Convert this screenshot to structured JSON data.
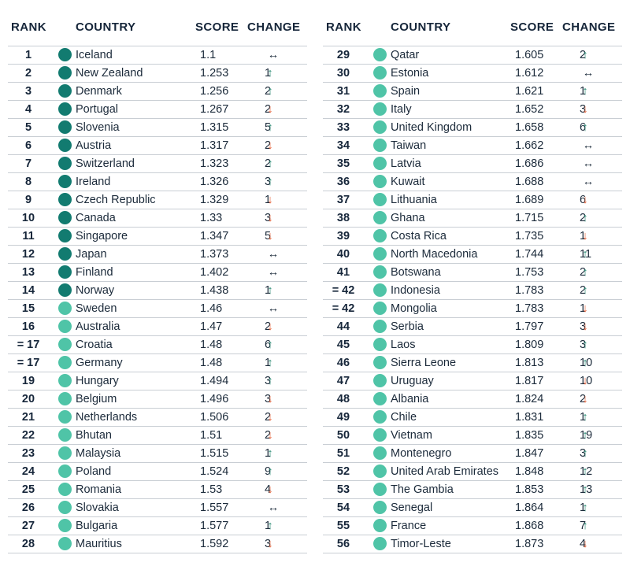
{
  "headers": {
    "rank": "RANK",
    "country": "COUNTRY",
    "score": "SCORE",
    "change": "CHANGE"
  },
  "colors": {
    "dark_teal": "#127b70",
    "light_teal": "#4fc4a7",
    "up": "#2b8c75",
    "down": "#e8673f"
  },
  "left_rows": [
    {
      "rank": "1",
      "country": "Iceland",
      "score": "1.1",
      "dir": "same",
      "change": "",
      "tier": "dark"
    },
    {
      "rank": "2",
      "country": "New Zealand",
      "score": "1.253",
      "dir": "up",
      "change": "1",
      "tier": "dark"
    },
    {
      "rank": "3",
      "country": "Denmark",
      "score": "1.256",
      "dir": "up",
      "change": "2",
      "tier": "dark"
    },
    {
      "rank": "4",
      "country": "Portugal",
      "score": "1.267",
      "dir": "down",
      "change": "2",
      "tier": "dark"
    },
    {
      "rank": "5",
      "country": "Slovenia",
      "score": "1.315",
      "dir": "up",
      "change": "5",
      "tier": "dark"
    },
    {
      "rank": "6",
      "country": "Austria",
      "score": "1.317",
      "dir": "down",
      "change": "2",
      "tier": "dark"
    },
    {
      "rank": "7",
      "country": "Switzerland",
      "score": "1.323",
      "dir": "up",
      "change": "2",
      "tier": "dark"
    },
    {
      "rank": "8",
      "country": "Ireland",
      "score": "1.326",
      "dir": "up",
      "change": "3",
      "tier": "dark"
    },
    {
      "rank": "9",
      "country": "Czech Republic",
      "score": "1.329",
      "dir": "down",
      "change": "1",
      "tier": "dark"
    },
    {
      "rank": "10",
      "country": "Canada",
      "score": "1.33",
      "dir": "down",
      "change": "3",
      "tier": "dark"
    },
    {
      "rank": "11",
      "country": "Singapore",
      "score": "1.347",
      "dir": "down",
      "change": "5",
      "tier": "dark"
    },
    {
      "rank": "12",
      "country": "Japan",
      "score": "1.373",
      "dir": "same",
      "change": "",
      "tier": "dark"
    },
    {
      "rank": "13",
      "country": "Finland",
      "score": "1.402",
      "dir": "same",
      "change": "",
      "tier": "dark"
    },
    {
      "rank": "14",
      "country": "Norway",
      "score": "1.438",
      "dir": "up",
      "change": "1",
      "tier": "dark"
    },
    {
      "rank": "15",
      "country": "Sweden",
      "score": "1.46",
      "dir": "same",
      "change": "",
      "tier": "light"
    },
    {
      "rank": "16",
      "country": "Australia",
      "score": "1.47",
      "dir": "down",
      "change": "2",
      "tier": "light"
    },
    {
      "rank": "= 17",
      "country": "Croatia",
      "score": "1.48",
      "dir": "up",
      "change": "6",
      "tier": "light"
    },
    {
      "rank": "= 17",
      "country": "Germany",
      "score": "1.48",
      "dir": "up",
      "change": "1",
      "tier": "light"
    },
    {
      "rank": "19",
      "country": "Hungary",
      "score": "1.494",
      "dir": "up",
      "change": "3",
      "tier": "light"
    },
    {
      "rank": "20",
      "country": "Belgium",
      "score": "1.496",
      "dir": "down",
      "change": "3",
      "tier": "light"
    },
    {
      "rank": "21",
      "country": "Netherlands",
      "score": "1.506",
      "dir": "down",
      "change": "2",
      "tier": "light"
    },
    {
      "rank": "22",
      "country": "Bhutan",
      "score": "1.51",
      "dir": "down",
      "change": "2",
      "tier": "light"
    },
    {
      "rank": "23",
      "country": "Malaysia",
      "score": "1.515",
      "dir": "up",
      "change": "1",
      "tier": "light"
    },
    {
      "rank": "24",
      "country": "Poland",
      "score": "1.524",
      "dir": "up",
      "change": "9",
      "tier": "light"
    },
    {
      "rank": "25",
      "country": "Romania",
      "score": "1.53",
      "dir": "down",
      "change": "4",
      "tier": "light"
    },
    {
      "rank": "26",
      "country": "Slovakia",
      "score": "1.557",
      "dir": "same",
      "change": "",
      "tier": "light"
    },
    {
      "rank": "27",
      "country": "Bulgaria",
      "score": "1.577",
      "dir": "up",
      "change": "1",
      "tier": "light"
    },
    {
      "rank": "28",
      "country": "Mauritius",
      "score": "1.592",
      "dir": "down",
      "change": "3",
      "tier": "light"
    }
  ],
  "right_rows": [
    {
      "rank": "29",
      "country": "Qatar",
      "score": "1.605",
      "dir": "up",
      "change": "2",
      "tier": "light"
    },
    {
      "rank": "30",
      "country": "Estonia",
      "score": "1.612",
      "dir": "same",
      "change": "",
      "tier": "light"
    },
    {
      "rank": "31",
      "country": "Spain",
      "score": "1.621",
      "dir": "up",
      "change": "1",
      "tier": "light"
    },
    {
      "rank": "32",
      "country": "Italy",
      "score": "1.652",
      "dir": "down",
      "change": "3",
      "tier": "light"
    },
    {
      "rank": "33",
      "country": "United Kingdom",
      "score": "1.658",
      "dir": "up",
      "change": "6",
      "tier": "light"
    },
    {
      "rank": "34",
      "country": "Taiwan",
      "score": "1.662",
      "dir": "same",
      "change": "",
      "tier": "light"
    },
    {
      "rank": "35",
      "country": "Latvia",
      "score": "1.686",
      "dir": "same",
      "change": "",
      "tier": "light"
    },
    {
      "rank": "36",
      "country": "Kuwait",
      "score": "1.688",
      "dir": "same",
      "change": "",
      "tier": "light"
    },
    {
      "rank": "37",
      "country": "Lithuania",
      "score": "1.689",
      "dir": "down",
      "change": "6",
      "tier": "light"
    },
    {
      "rank": "38",
      "country": "Ghana",
      "score": "1.715",
      "dir": "up",
      "change": "2",
      "tier": "light"
    },
    {
      "rank": "39",
      "country": "Costa Rica",
      "score": "1.735",
      "dir": "down",
      "change": "1",
      "tier": "light"
    },
    {
      "rank": "40",
      "country": "North Macedonia",
      "score": "1.744",
      "dir": "up",
      "change": "11",
      "tier": "light"
    },
    {
      "rank": "41",
      "country": "Botswana",
      "score": "1.753",
      "dir": "up",
      "change": "2",
      "tier": "light"
    },
    {
      "rank": "= 42",
      "country": "Indonesia",
      "score": "1.783",
      "dir": "up",
      "change": "2",
      "tier": "light"
    },
    {
      "rank": "= 42",
      "country": "Mongolia",
      "score": "1.783",
      "dir": "down",
      "change": "1",
      "tier": "light"
    },
    {
      "rank": "44",
      "country": "Serbia",
      "score": "1.797",
      "dir": "down",
      "change": "3",
      "tier": "light"
    },
    {
      "rank": "45",
      "country": "Laos",
      "score": "1.809",
      "dir": "up",
      "change": "3",
      "tier": "light"
    },
    {
      "rank": "46",
      "country": "Sierra Leone",
      "score": "1.813",
      "dir": "up",
      "change": "10",
      "tier": "light"
    },
    {
      "rank": "47",
      "country": "Uruguay",
      "score": "1.817",
      "dir": "down",
      "change": "10",
      "tier": "light"
    },
    {
      "rank": "48",
      "country": "Albania",
      "score": "1.824",
      "dir": "down",
      "change": "2",
      "tier": "light"
    },
    {
      "rank": "49",
      "country": "Chile",
      "score": "1.831",
      "dir": "up",
      "change": "1",
      "tier": "light"
    },
    {
      "rank": "50",
      "country": "Vietnam",
      "score": "1.835",
      "dir": "up",
      "change": "19",
      "tier": "light"
    },
    {
      "rank": "51",
      "country": "Montenegro",
      "score": "1.847",
      "dir": "up",
      "change": "3",
      "tier": "light"
    },
    {
      "rank": "52",
      "country": "United Arab Emirates",
      "score": "1.848",
      "dir": "up",
      "change": "12",
      "tier": "light"
    },
    {
      "rank": "53",
      "country": "The Gambia",
      "score": "1.853",
      "dir": "up",
      "change": "13",
      "tier": "light"
    },
    {
      "rank": "54",
      "country": "Senegal",
      "score": "1.864",
      "dir": "up",
      "change": "1",
      "tier": "light"
    },
    {
      "rank": "55",
      "country": "France",
      "score": "1.868",
      "dir": "up",
      "change": "7",
      "tier": "light"
    },
    {
      "rank": "56",
      "country": "Timor-Leste",
      "score": "1.873",
      "dir": "down",
      "change": "4",
      "tier": "light"
    }
  ]
}
